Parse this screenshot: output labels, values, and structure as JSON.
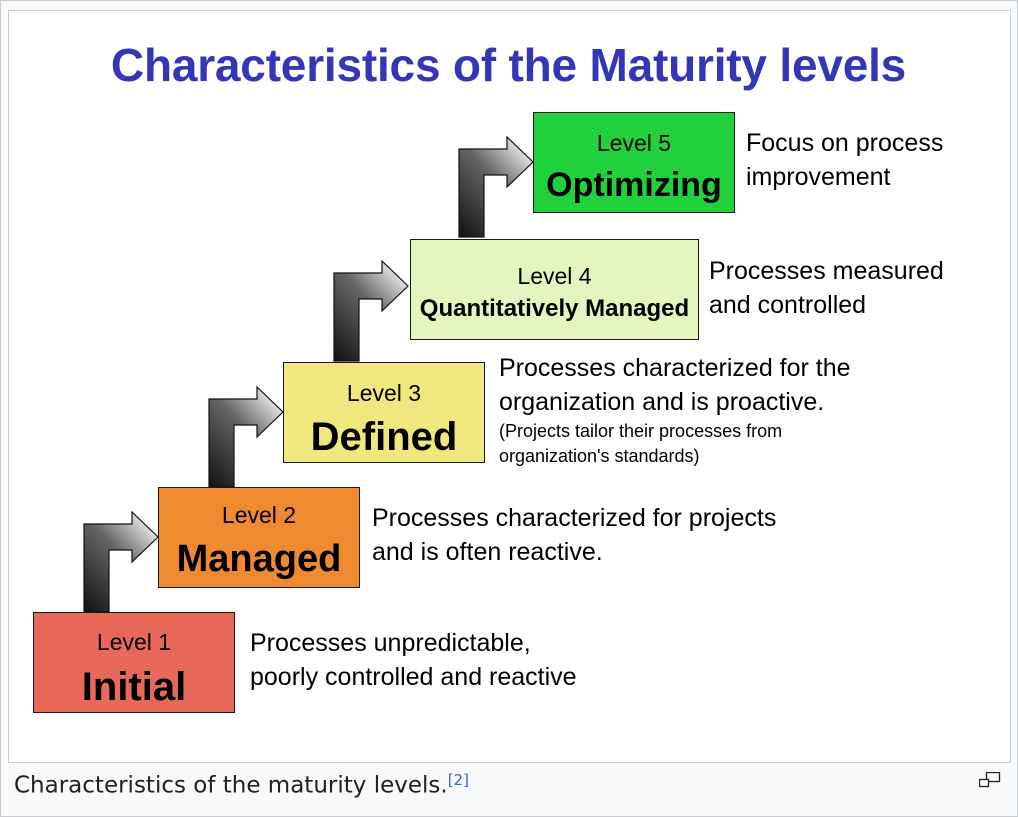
{
  "title": "Characteristics of the Maturity levels",
  "levels": [
    {
      "number": "Level 1",
      "name": "Initial",
      "color": "#e8695a",
      "description": [
        "Processes unpredictable,",
        "poorly controlled and reactive"
      ],
      "note": []
    },
    {
      "number": "Level 2",
      "name": "Managed",
      "color": "#ef8a30",
      "description": [
        "Processes characterized for projects",
        "and is often reactive."
      ],
      "note": []
    },
    {
      "number": "Level 3",
      "name": "Defined",
      "color": "#f0e87e",
      "description": [
        "Processes characterized for the",
        "organization and is proactive."
      ],
      "note": [
        "(Projects tailor their processes from",
        "organization's standards)"
      ]
    },
    {
      "number": "Level 4",
      "name": "Quantitatively Managed",
      "color": "#e4f6c0",
      "description": [
        "Processes measured",
        "and controlled"
      ],
      "note": []
    },
    {
      "number": "Level 5",
      "name": "Optimizing",
      "color": "#20d13c",
      "description": [
        "Focus on process",
        "improvement"
      ],
      "note": []
    }
  ],
  "caption": {
    "text": "Characteristics of the maturity levels.",
    "reference": "[2]"
  },
  "icons": {
    "magnify": "magnify-icon",
    "step_arrow": "step-arrow-icon"
  }
}
